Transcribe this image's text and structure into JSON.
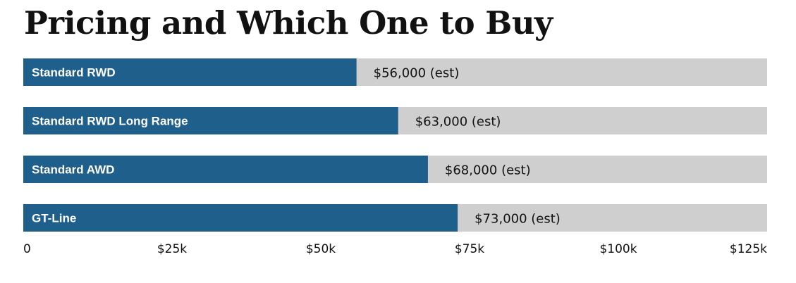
{
  "chart_data": {
    "type": "bar",
    "orientation": "horizontal",
    "title": "Pricing and Which One to Buy",
    "categories": [
      "Standard RWD",
      "Standard RWD Long Range",
      "Standard AWD",
      "GT-Line"
    ],
    "values": [
      56000,
      63000,
      68000,
      73000
    ],
    "value_labels": [
      "$56,000 (est)",
      "$63,000 (est)",
      "$68,000 (est)",
      "$73,000 (est)"
    ],
    "xlim": [
      0,
      125000
    ],
    "x_ticks": [
      0,
      25000,
      50000,
      75000,
      100000,
      125000
    ],
    "x_tick_labels": [
      "0",
      "$25k",
      "$50k",
      "$75k",
      "$100k",
      "$125k"
    ],
    "xlabel": "",
    "ylabel": "",
    "grid": false,
    "legend": "none",
    "colors": {
      "bar": "#1f5f8b",
      "track": "#cfcfcf",
      "category_text": "#ffffff",
      "value_text": "#111111"
    }
  }
}
